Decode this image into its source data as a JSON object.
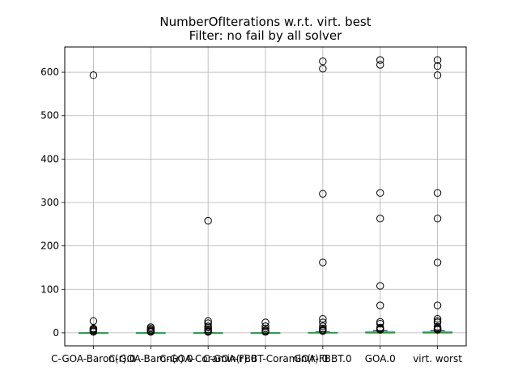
{
  "chart_data": {
    "type": "box",
    "title": "NumberOfIterations w.r.t. virt. best",
    "subtitle": "Filter: no fail by all solver",
    "xlabel": "",
    "ylabel": "",
    "ylim": [
      -30,
      658
    ],
    "yticks": [
      0,
      100,
      200,
      300,
      400,
      500,
      600
    ],
    "grid": true,
    "categories": [
      "C-GOA-Baron(r).0",
      "C-GOA-Baron(r).0",
      "C-GOA-Coramin(r).0",
      "C-GOA-FBBT-Coramin(r).0",
      "GOA-FBBT.0",
      "GOA.0",
      "virt. worst"
    ],
    "boxes": [
      {
        "q1": 0,
        "median": 0,
        "q3": 0,
        "whisker_low": 0,
        "whisker_high": 0,
        "outliers": [
          593,
          27,
          10,
          8,
          6,
          4,
          2
        ]
      },
      {
        "q1": 0,
        "median": 0,
        "q3": 0,
        "whisker_low": 0,
        "whisker_high": 0,
        "outliers": [
          13,
          10,
          7,
          5,
          3,
          2
        ]
      },
      {
        "q1": 0,
        "median": 0,
        "q3": 0,
        "whisker_low": 0,
        "whisker_high": 0,
        "outliers": [
          258,
          27,
          22,
          15,
          12,
          8,
          5,
          3,
          2
        ]
      },
      {
        "q1": 0,
        "median": 0,
        "q3": 0,
        "whisker_low": 0,
        "whisker_high": 0,
        "outliers": [
          24,
          15,
          10,
          6,
          4,
          2
        ]
      },
      {
        "q1": 0,
        "median": 0,
        "q3": 1,
        "whisker_low": 0,
        "whisker_high": 2,
        "outliers": [
          625,
          608,
          320,
          162,
          32,
          24,
          15,
          10,
          7,
          5,
          4
        ]
      },
      {
        "q1": 0,
        "median": 0,
        "q3": 2,
        "whisker_low": 0,
        "whisker_high": 5,
        "outliers": [
          628,
          617,
          322,
          263,
          108,
          63,
          25,
          21,
          12,
          10,
          8,
          7
        ]
      },
      {
        "q1": 0,
        "median": 0,
        "q3": 2,
        "whisker_low": 0,
        "whisker_high": 5,
        "outliers": [
          628,
          614,
          593,
          322,
          263,
          162,
          63,
          32,
          27,
          24,
          14,
          10,
          9,
          8,
          7
        ]
      }
    ]
  }
}
